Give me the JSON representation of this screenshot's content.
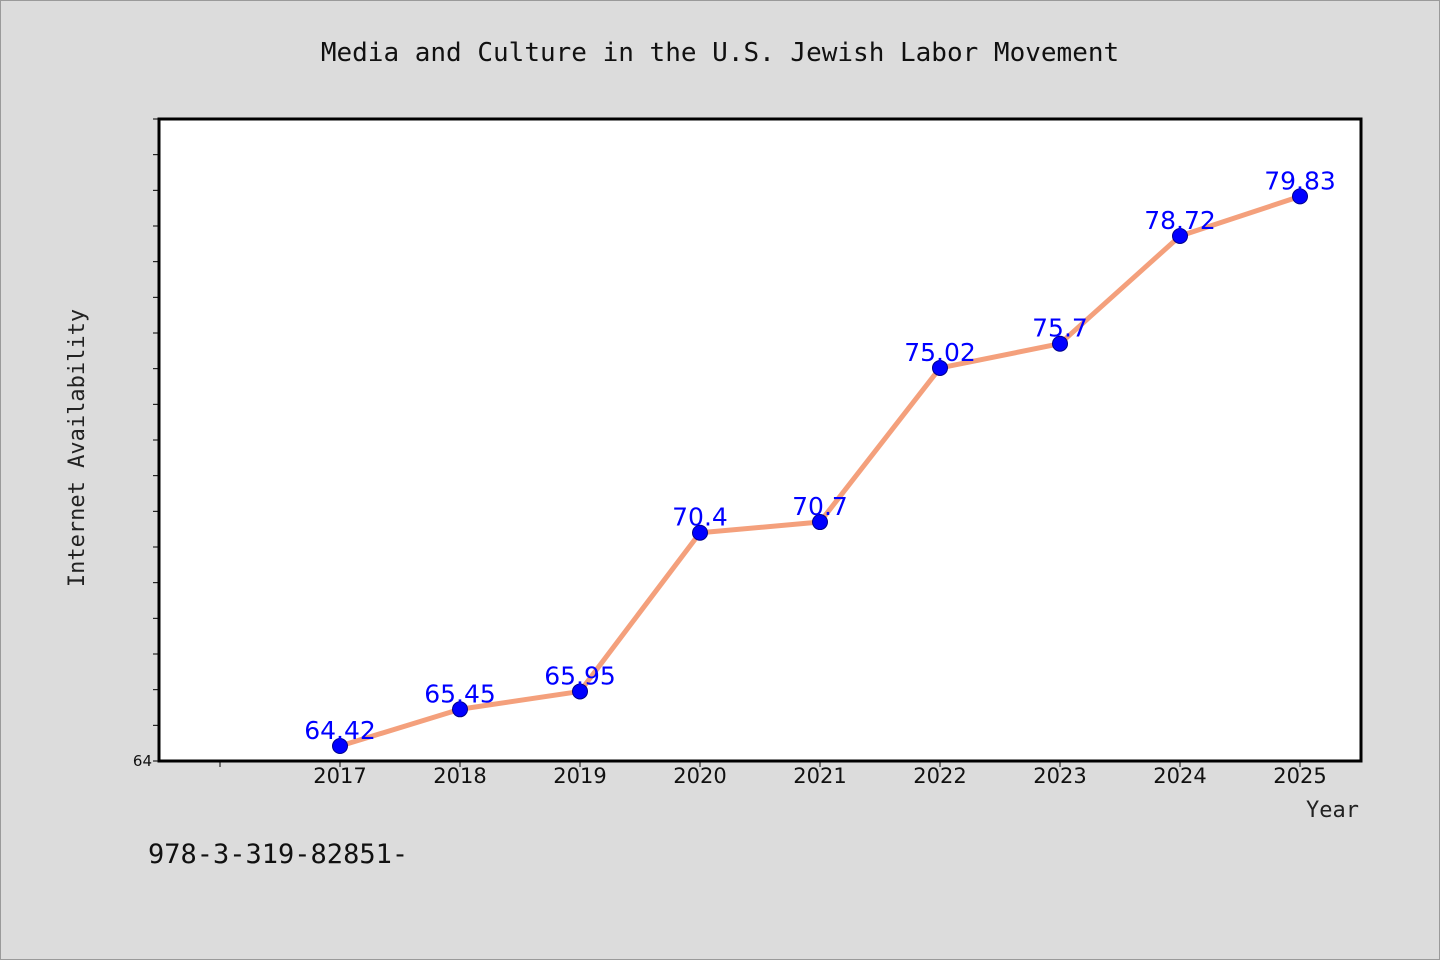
{
  "footer": {
    "code": "978-3-319-82851-"
  },
  "colors": {
    "background": "#dcdcdc",
    "plot_background": "#ffffff",
    "line": "#f4a07c",
    "marker": "#0000ff",
    "data_label": "#0000ff"
  },
  "chart_data": {
    "type": "line",
    "title": "Media and Culture in the U.S. Jewish Labor Movement",
    "xlabel": "Year",
    "ylabel": "Internet Availability",
    "categories": [
      "2017",
      "2018",
      "2019",
      "2020",
      "2021",
      "2022",
      "2023",
      "2024",
      "2025"
    ],
    "series": [
      {
        "values": [
          64.42,
          65.45,
          65.95,
          70.4,
          70.7,
          75.02,
          75.7,
          78.72,
          79.83
        ]
      }
    ],
    "data_labels": [
      "64.42",
      "65.45",
      "65.95",
      "70.4",
      "70.7",
      "75.02",
      "75.7",
      "78.72",
      "79.83"
    ],
    "y_tick_labels": [
      "64"
    ],
    "ylim": [
      64,
      82
    ],
    "y_minor_tick_step": 1,
    "grid": false,
    "legend": "none"
  }
}
